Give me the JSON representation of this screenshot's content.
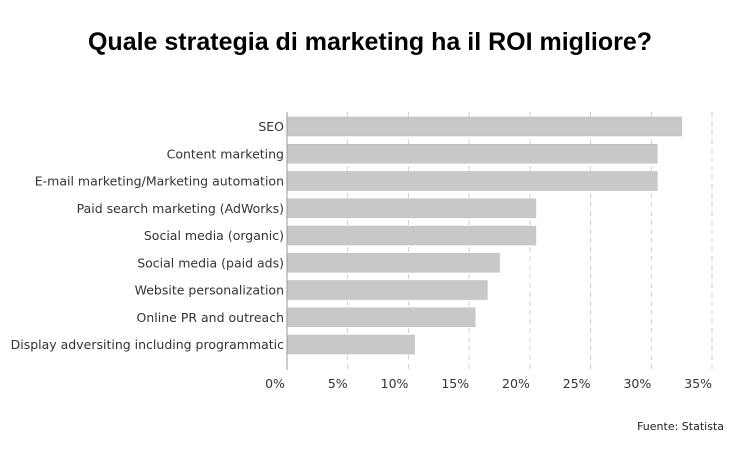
{
  "chart_data": {
    "type": "bar",
    "orientation": "horizontal",
    "title": "Quale strategia di marketing ha il ROI migliore?",
    "categories": [
      "SEO",
      "Content marketing",
      "E-mail marketing/Marketing automation",
      "Paid search marketing (AdWorks)",
      "Social media (organic)",
      "Social media (paid ads)",
      "Website personalization",
      "Online PR and outreach",
      "Display adversiting including programmatic"
    ],
    "values": [
      32.5,
      30.5,
      30.5,
      20.5,
      20.5,
      17.5,
      16.5,
      15.5,
      10.5
    ],
    "x_ticks": [
      "0%",
      "5%",
      "10%",
      "15%",
      "20%",
      "25%",
      "30%",
      "35%"
    ],
    "xlim": [
      0,
      35
    ],
    "grid": "vertical dashed",
    "bar_color": "#c8c8c8",
    "source": "Fuente: Statista"
  }
}
